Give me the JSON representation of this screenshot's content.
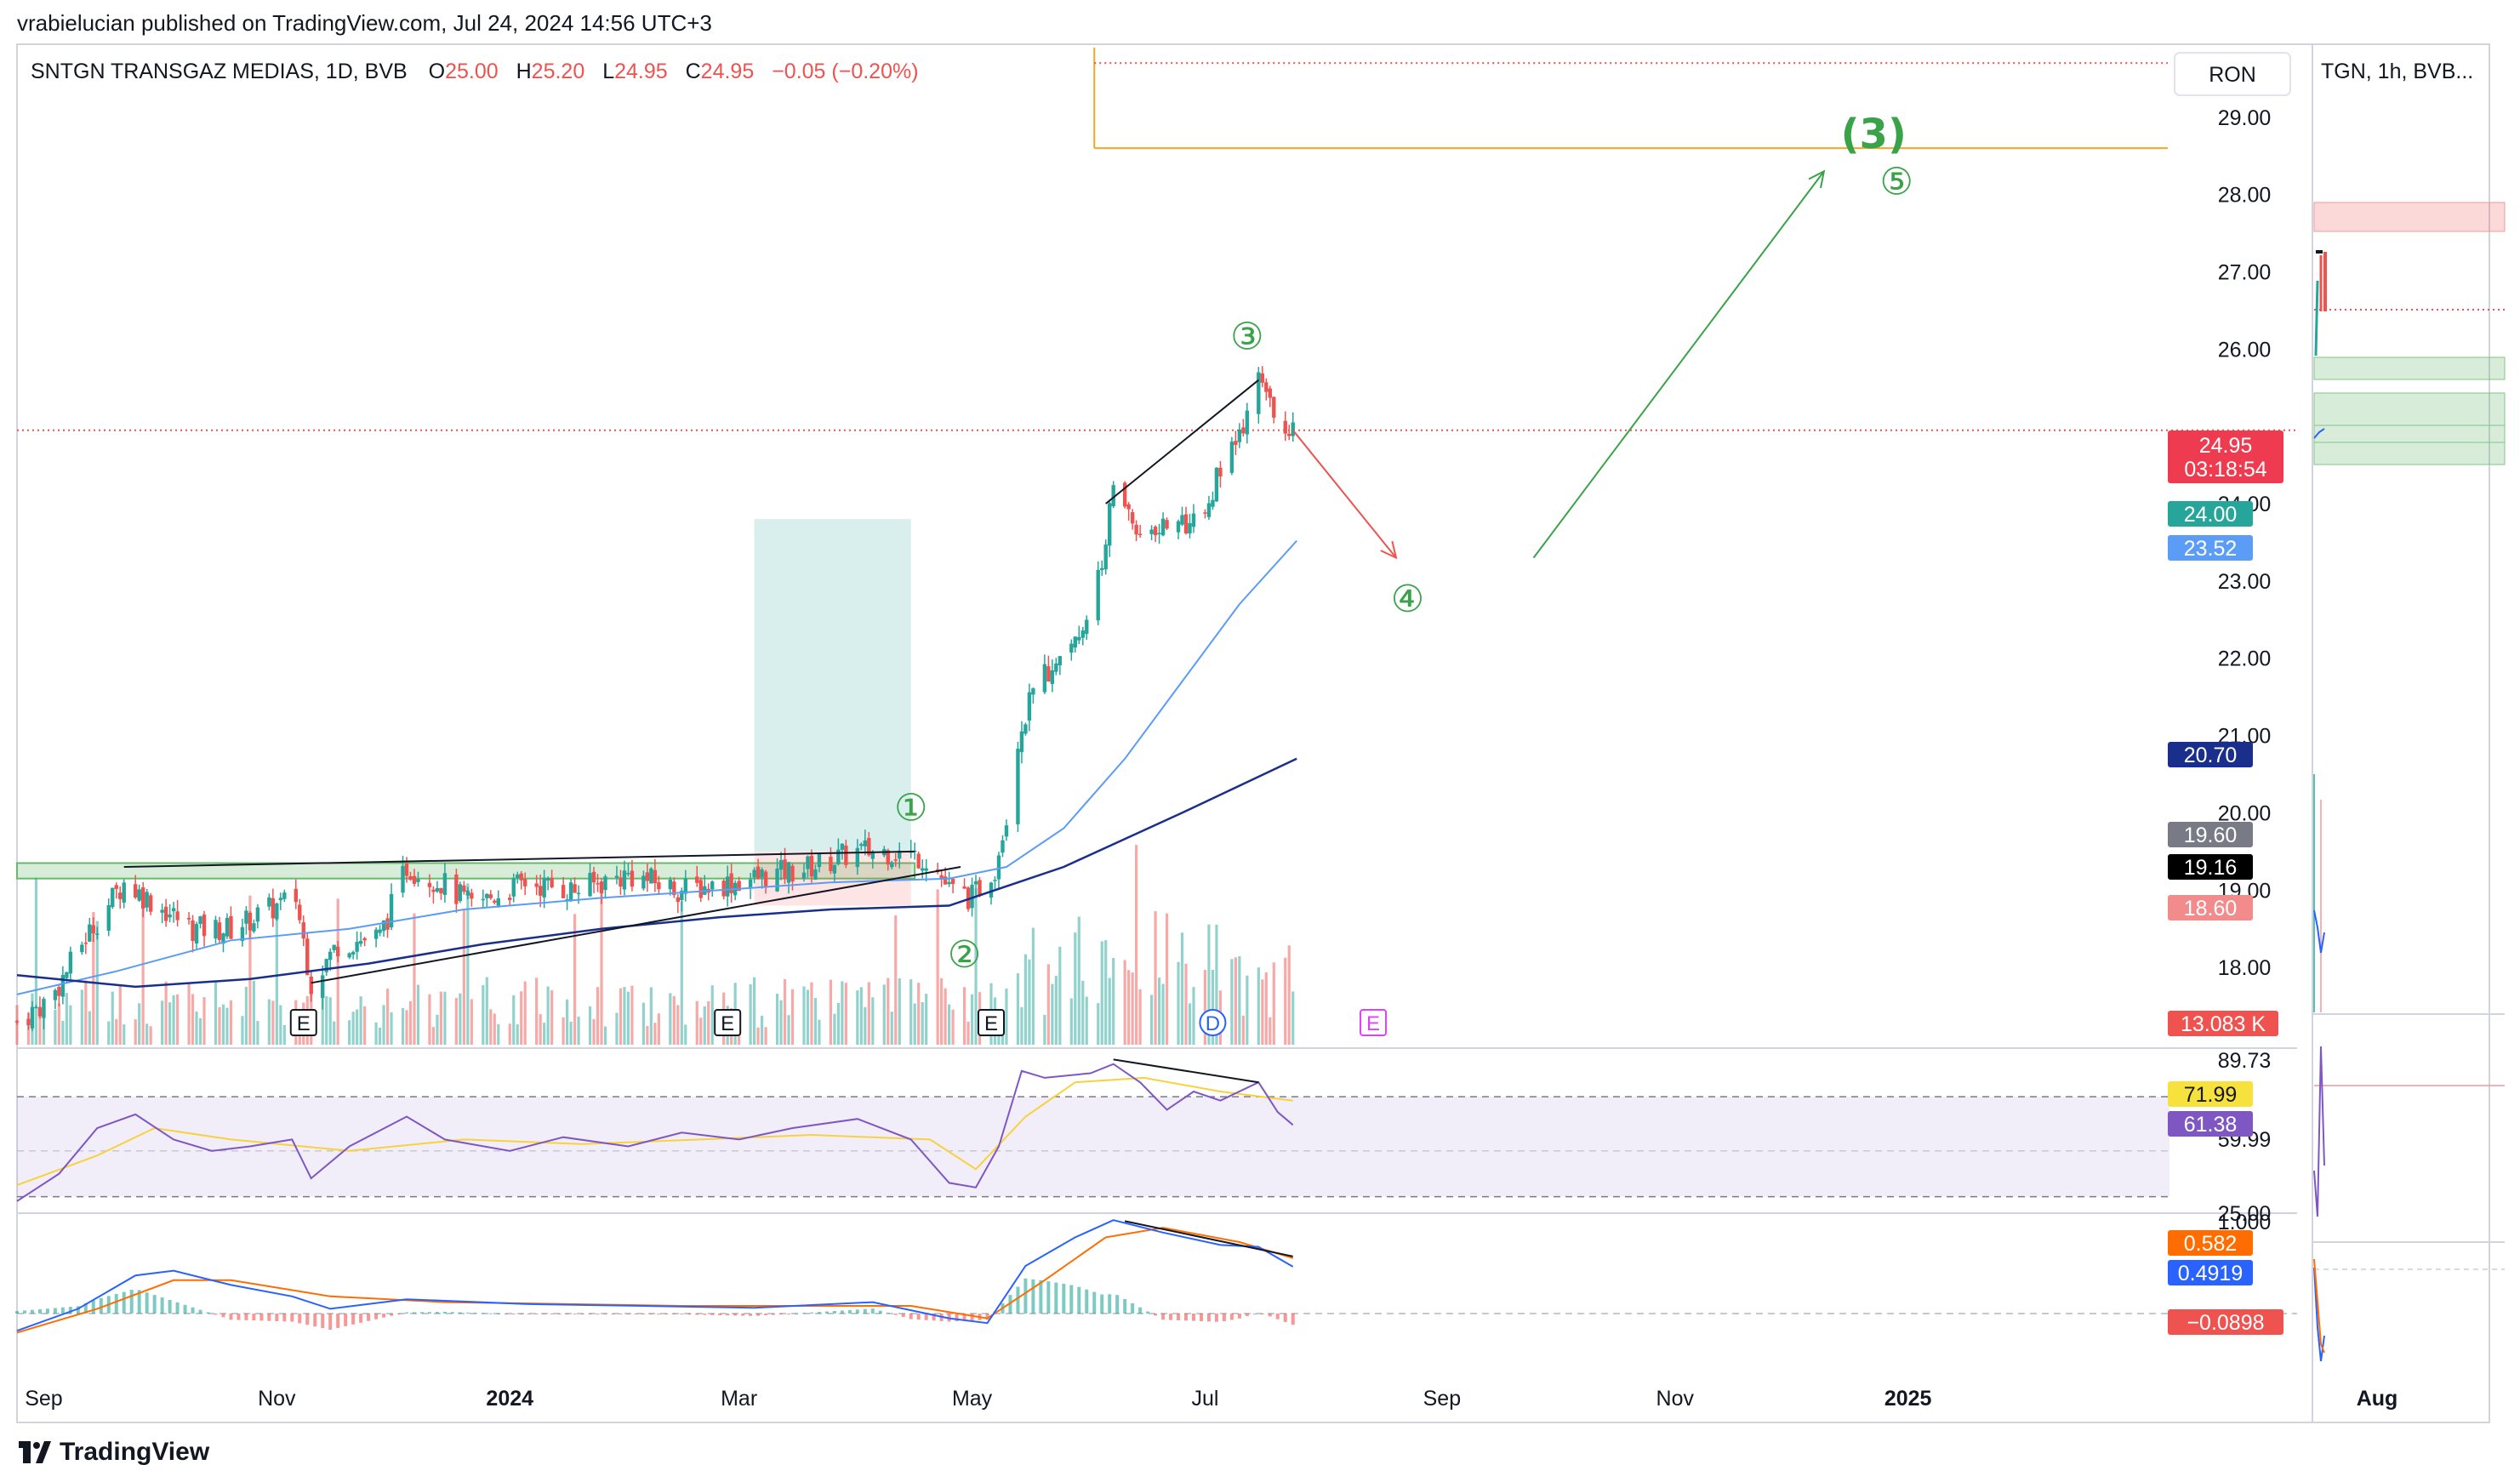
{
  "header": {
    "publisher_line": "vrabielucian published on TradingView.com, Jul 24, 2024 14:56 UTC+3"
  },
  "legend": {
    "symbol": "SNTGN TRANSGAZ MEDIAS, 1D, BVB",
    "o_label": "O",
    "o": "25.00",
    "h_label": "H",
    "h": "25.20",
    "l_label": "L",
    "l": "24.95",
    "c_label": "C",
    "c": "24.95",
    "change": "−0.05 (−0.20%)"
  },
  "currency": "RON",
  "side_panel": {
    "title": "TGN, 1h, BVB...",
    "x_label": "Aug"
  },
  "footer": {
    "brand": "TradingView"
  },
  "colors": {
    "up": "#26a69a",
    "down": "#ef5350",
    "ma50": "#5b9cf6",
    "ma200": "#1a2f8c",
    "rsi": "#7e57c2",
    "rsi_ma": "#f7d23c",
    "macd": "#2962ff",
    "signal": "#ff6d00",
    "wave": "#3aa34a",
    "price_line": "#ef5350",
    "target": "#f5a623"
  },
  "badges": {
    "last_price": "24.95",
    "countdown": "03:18:54",
    "b1": "24.00",
    "b2": "23.52",
    "b3": "20.70",
    "b4": "19.60",
    "b5": "19.16",
    "b6": "18.60",
    "volume": "13.083 K",
    "rsi_ma": "71.99",
    "rsi": "61.38",
    "signal": "0.582",
    "macd": "0.4919",
    "hist": "−0.0898"
  },
  "chart_data": [
    {
      "type": "candlestick",
      "title": "SNTGN TRANSGAZ MEDIAS, 1D, BVB",
      "x_ticks": [
        "Sep",
        "Nov",
        "2024",
        "Mar",
        "May",
        "Jul",
        "Sep",
        "Nov",
        "2025"
      ],
      "y_ticks": [
        "29.00",
        "28.00",
        "27.00",
        "26.00",
        "24.00",
        "23.00",
        "22.00",
        "21.00",
        "20.00",
        "19.00",
        "18.00"
      ],
      "ylim": [
        17.0,
        29.9
      ],
      "x_range": [
        "2023-08-25",
        "2025-03-10"
      ],
      "close_path": [
        [
          "2023-08-25",
          17.3
        ],
        [
          "2023-09-03",
          17.6
        ],
        [
          "2023-09-12",
          18.4
        ],
        [
          "2023-09-22",
          19.1
        ],
        [
          "2023-10-01",
          18.8
        ],
        [
          "2023-10-10",
          18.5
        ],
        [
          "2023-10-20",
          18.5
        ],
        [
          "2023-10-28",
          18.7
        ],
        [
          "2023-11-06",
          18.9
        ],
        [
          "2023-11-10",
          17.8
        ],
        [
          "2023-11-17",
          18.3
        ],
        [
          "2023-11-28",
          18.4
        ],
        [
          "2023-12-05",
          19.3
        ],
        [
          "2023-12-14",
          19.1
        ],
        [
          "2023-12-22",
          18.8
        ],
        [
          "2024-01-05",
          19.1
        ],
        [
          "2024-01-18",
          19.0
        ],
        [
          "2024-02-01",
          19.2
        ],
        [
          "2024-02-15",
          19.0
        ],
        [
          "2024-02-28",
          19.1
        ],
        [
          "2024-03-10",
          19.2
        ],
        [
          "2024-03-20",
          19.3
        ],
        [
          "2024-04-01",
          19.5
        ],
        [
          "2024-04-10",
          19.5
        ],
        [
          "2024-04-20",
          19.4
        ],
        [
          "2024-04-25",
          19.0
        ],
        [
          "2024-05-01",
          18.9
        ],
        [
          "2024-05-07",
          19.3
        ],
        [
          "2024-05-10",
          20.0
        ],
        [
          "2024-05-14",
          21.2
        ],
        [
          "2024-05-20",
          21.8
        ],
        [
          "2024-05-28",
          22.3
        ],
        [
          "2024-06-03",
          23.0
        ],
        [
          "2024-06-07",
          24.2
        ],
        [
          "2024-06-14",
          23.6
        ],
        [
          "2024-06-21",
          23.8
        ],
        [
          "2024-06-28",
          23.7
        ],
        [
          "2024-07-05",
          24.4
        ],
        [
          "2024-07-11",
          24.9
        ],
        [
          "2024-07-15",
          25.6
        ],
        [
          "2024-07-19",
          25.1
        ],
        [
          "2024-07-24",
          24.95
        ]
      ],
      "ma50_path": [
        [
          "2023-08-25",
          17.65
        ],
        [
          "2023-09-20",
          17.95
        ],
        [
          "2023-10-20",
          18.35
        ],
        [
          "2023-11-20",
          18.5
        ],
        [
          "2023-12-20",
          18.75
        ],
        [
          "2024-01-25",
          18.9
        ],
        [
          "2024-02-25",
          19.0
        ],
        [
          "2024-03-25",
          19.1
        ],
        [
          "2024-04-25",
          19.15
        ],
        [
          "2024-05-10",
          19.3
        ],
        [
          "2024-05-25",
          19.8
        ],
        [
          "2024-06-10",
          20.7
        ],
        [
          "2024-06-25",
          21.7
        ],
        [
          "2024-07-10",
          22.7
        ],
        [
          "2024-07-25",
          23.52
        ]
      ],
      "ma200_path": [
        [
          "2023-08-25",
          17.9
        ],
        [
          "2023-09-25",
          17.75
        ],
        [
          "2023-10-25",
          17.85
        ],
        [
          "2023-11-25",
          18.05
        ],
        [
          "2023-12-25",
          18.3
        ],
        [
          "2024-01-25",
          18.5
        ],
        [
          "2024-02-25",
          18.65
        ],
        [
          "2024-03-25",
          18.75
        ],
        [
          "2024-04-25",
          18.8
        ],
        [
          "2024-05-25",
          19.3
        ],
        [
          "2024-06-25",
          20.0
        ],
        [
          "2024-07-25",
          20.7
        ]
      ],
      "resistance_zone": [
        19.15,
        19.35
      ],
      "target_top_dotted": 29.7,
      "target_bottom": 28.6,
      "projection_rect": {
        "start": "2024-03-05",
        "end": "2024-04-15",
        "top": 23.8,
        "bottom": 18.8
      },
      "last_price_line": 24.95,
      "wedge_upper": [
        [
          "2023-09-22",
          19.3
        ],
        [
          "2024-04-16",
          19.5
        ]
      ],
      "wedge_lower": [
        [
          "2023-11-10",
          17.8
        ],
        [
          "2024-04-28",
          19.3
        ]
      ],
      "peak_line": [
        [
          "2024-06-05",
          24.0
        ],
        [
          "2024-07-15",
          25.6
        ]
      ],
      "arrow_down": [
        [
          "2024-07-24",
          24.95
        ],
        [
          "2024-08-20",
          23.3
        ]
      ],
      "arrow_up": [
        [
          "2024-09-25",
          23.3
        ],
        [
          "2024-12-10",
          28.3
        ]
      ],
      "wave_labels": [
        {
          "label": "①",
          "x": "2024-04-15",
          "y": 19.9
        },
        {
          "label": "②",
          "x": "2024-04-29",
          "y": 18.0
        },
        {
          "label": "③",
          "x": "2024-07-12",
          "y": 26.0
        },
        {
          "label": "④",
          "x": "2024-08-23",
          "y": 22.6
        },
        {
          "label": "⑤",
          "x": "2024-12-29",
          "y": 28.0
        },
        {
          "label": "(3)",
          "x": "2024-12-23",
          "y": 28.6
        }
      ],
      "event_markers": [
        {
          "label": "E",
          "x": "2023-11-08"
        },
        {
          "label": "E",
          "x": "2024-02-27"
        },
        {
          "label": "E",
          "x": "2024-05-06"
        },
        {
          "label": "D",
          "x": "2024-07-03"
        },
        {
          "label": "E",
          "x": "2024-08-14"
        }
      ]
    },
    {
      "type": "line",
      "title": "RSI",
      "y_ticks": [
        "89.73",
        "59.99",
        "25.00"
      ],
      "bands": [
        70,
        30
      ],
      "ylim": [
        25,
        92
      ],
      "rsi_path": [
        [
          "2023-08-25",
          28
        ],
        [
          "2023-09-05",
          40
        ],
        [
          "2023-09-15",
          60
        ],
        [
          "2023-09-25",
          66
        ],
        [
          "2023-10-05",
          55
        ],
        [
          "2023-10-15",
          50
        ],
        [
          "2023-10-25",
          52
        ],
        [
          "2023-11-05",
          55
        ],
        [
          "2023-11-10",
          38
        ],
        [
          "2023-11-20",
          52
        ],
        [
          "2023-12-05",
          65
        ],
        [
          "2023-12-15",
          55
        ],
        [
          "2024-01-01",
          50
        ],
        [
          "2024-01-15",
          56
        ],
        [
          "2024-02-01",
          52
        ],
        [
          "2024-02-15",
          58
        ],
        [
          "2024-03-01",
          55
        ],
        [
          "2024-03-15",
          60
        ],
        [
          "2024-04-01",
          64
        ],
        [
          "2024-04-15",
          55
        ],
        [
          "2024-04-25",
          36
        ],
        [
          "2024-05-02",
          34
        ],
        [
          "2024-05-08",
          52
        ],
        [
          "2024-05-14",
          85
        ],
        [
          "2024-05-20",
          82
        ],
        [
          "2024-06-01",
          84
        ],
        [
          "2024-06-07",
          88
        ],
        [
          "2024-06-14",
          80
        ],
        [
          "2024-06-21",
          68
        ],
        [
          "2024-06-28",
          76
        ],
        [
          "2024-07-05",
          72
        ],
        [
          "2024-07-15",
          80
        ],
        [
          "2024-07-20",
          67
        ],
        [
          "2024-07-24",
          61.38
        ]
      ],
      "rsi_ma_path": [
        [
          "2023-08-25",
          35
        ],
        [
          "2023-09-15",
          48
        ],
        [
          "2023-09-30",
          60
        ],
        [
          "2023-10-20",
          55
        ],
        [
          "2023-11-20",
          50
        ],
        [
          "2023-12-20",
          55
        ],
        [
          "2024-01-20",
          53
        ],
        [
          "2024-02-20",
          55
        ],
        [
          "2024-03-20",
          57
        ],
        [
          "2024-04-20",
          55
        ],
        [
          "2024-05-02",
          42
        ],
        [
          "2024-05-15",
          65
        ],
        [
          "2024-05-28",
          80
        ],
        [
          "2024-06-15",
          82
        ],
        [
          "2024-07-05",
          76
        ],
        [
          "2024-07-24",
          71.99
        ]
      ],
      "divergence_line": [
        [
          "2024-06-07",
          90
        ],
        [
          "2024-07-15",
          80
        ]
      ]
    },
    {
      "type": "line",
      "title": "MACD",
      "y_ticks": [
        "1.000"
      ],
      "ylim": [
        -0.5,
        1.0
      ],
      "macd_path": [
        [
          "2023-08-25",
          -0.18
        ],
        [
          "2023-09-10",
          0.05
        ],
        [
          "2023-09-25",
          0.4
        ],
        [
          "2023-10-05",
          0.45
        ],
        [
          "2023-10-20",
          0.3
        ],
        [
          "2023-11-05",
          0.18
        ],
        [
          "2023-11-15",
          0.05
        ],
        [
          "2023-12-05",
          0.15
        ],
        [
          "2024-01-05",
          0.1
        ],
        [
          "2024-02-05",
          0.08
        ],
        [
          "2024-03-05",
          0.06
        ],
        [
          "2024-04-05",
          0.12
        ],
        [
          "2024-04-25",
          -0.05
        ],
        [
          "2024-05-05",
          -0.1
        ],
        [
          "2024-05-15",
          0.5
        ],
        [
          "2024-05-28",
          0.8
        ],
        [
          "2024-06-07",
          0.98
        ],
        [
          "2024-06-20",
          0.85
        ],
        [
          "2024-07-05",
          0.72
        ],
        [
          "2024-07-15",
          0.7
        ],
        [
          "2024-07-24",
          0.4919
        ]
      ],
      "signal_path": [
        [
          "2023-08-25",
          -0.2
        ],
        [
          "2023-09-15",
          0.05
        ],
        [
          "2023-10-05",
          0.35
        ],
        [
          "2023-10-20",
          0.35
        ],
        [
          "2023-11-15",
          0.18
        ],
        [
          "2023-12-15",
          0.12
        ],
        [
          "2024-01-15",
          0.1
        ],
        [
          "2024-02-15",
          0.08
        ],
        [
          "2024-03-15",
          0.08
        ],
        [
          "2024-04-15",
          0.08
        ],
        [
          "2024-05-05",
          -0.05
        ],
        [
          "2024-05-20",
          0.35
        ],
        [
          "2024-06-05",
          0.8
        ],
        [
          "2024-06-20",
          0.9
        ],
        [
          "2024-07-10",
          0.75
        ],
        [
          "2024-07-24",
          0.582
        ]
      ],
      "divergence_line": [
        [
          "2024-06-10",
          0.97
        ],
        [
          "2024-07-24",
          0.6
        ]
      ]
    }
  ]
}
